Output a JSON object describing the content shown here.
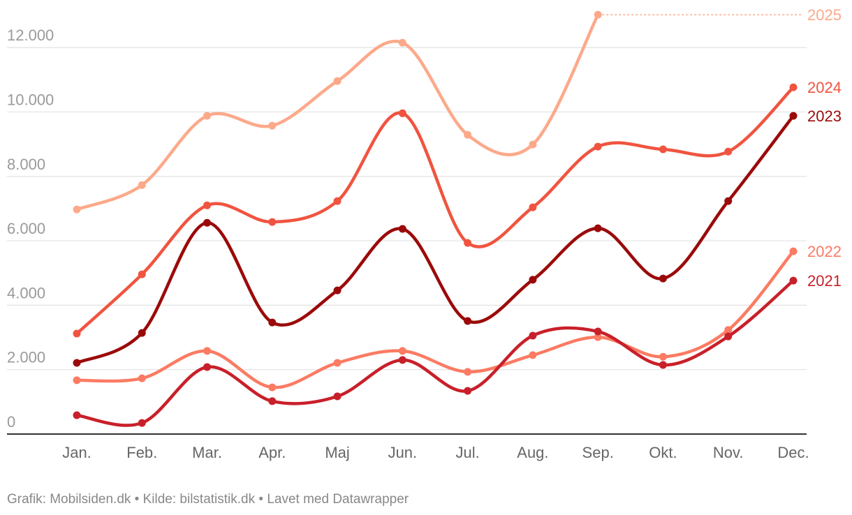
{
  "chart_data": {
    "type": "line",
    "categories": [
      "Jan.",
      "Feb.",
      "Mar.",
      "Apr.",
      "Maj",
      "Jun.",
      "Jul.",
      "Aug.",
      "Sep.",
      "Okt.",
      "Nov.",
      "Dec."
    ],
    "series": [
      {
        "name": "2025",
        "color": "#fca98a",
        "values": [
          6975,
          7730,
          9880,
          9575,
          10960,
          12150,
          9290,
          8990,
          13020,
          null,
          null,
          null
        ]
      },
      {
        "name": "2024",
        "color": "#f05440",
        "values": [
          3120,
          4960,
          7100,
          6585,
          7235,
          9960,
          5935,
          7040,
          8925,
          8840,
          8770,
          10765
        ]
      },
      {
        "name": "2023",
        "color": "#9b0a0a",
        "values": [
          2210,
          3140,
          6560,
          3465,
          4460,
          6370,
          3510,
          4790,
          6390,
          4830,
          7235,
          9880
        ]
      },
      {
        "name": "2022",
        "color": "#fb7b63",
        "values": [
          1670,
          1730,
          2580,
          1450,
          2210,
          2580,
          1930,
          2450,
          3010,
          2400,
          3230,
          5675
        ]
      },
      {
        "name": "2021",
        "color": "#c8202a",
        "values": [
          585,
          345,
          2080,
          1020,
          1170,
          2300,
          1340,
          3055,
          3185,
          2145,
          3030,
          4765
        ]
      }
    ],
    "ylim": [
      0,
      13000
    ],
    "yticks": [
      0,
      {
        "value": 2000,
        "label": "2.000"
      },
      {
        "value": 4000,
        "label": "4.000"
      },
      {
        "value": 6000,
        "label": "6.000"
      },
      {
        "value": 8000,
        "label": "8.000"
      },
      {
        "value": 10000,
        "label": "10.000"
      },
      {
        "value": 12000,
        "label": "12.000"
      }
    ],
    "grid": true,
    "source": "Grafik: Mobilsiden.dk • Kilde: bilstatistik.dk • Lavet med Datawrapper"
  }
}
